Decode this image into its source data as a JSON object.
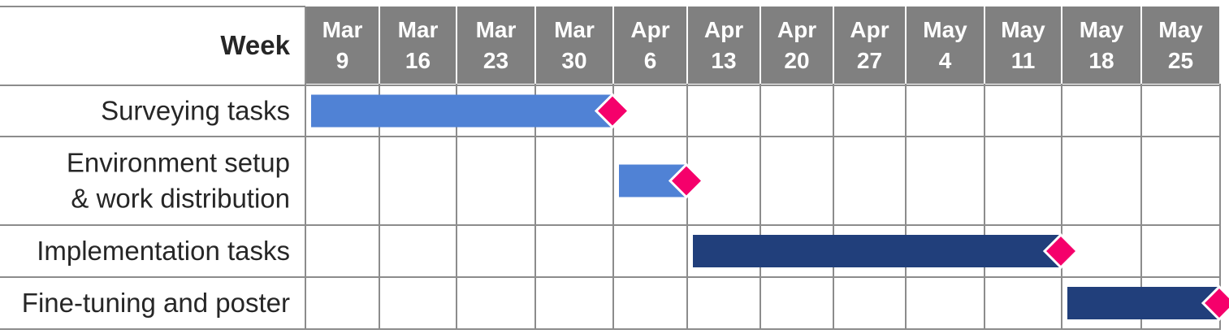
{
  "chart_data": {
    "type": "gantt",
    "header_label": "Week",
    "weeks": [
      {
        "month": "Mar",
        "day": "9"
      },
      {
        "month": "Mar",
        "day": "16"
      },
      {
        "month": "Mar",
        "day": "23"
      },
      {
        "month": "Mar",
        "day": "30"
      },
      {
        "month": "Apr",
        "day": "6"
      },
      {
        "month": "Apr",
        "day": "13"
      },
      {
        "month": "Apr",
        "day": "20"
      },
      {
        "month": "Apr",
        "day": "27"
      },
      {
        "month": "May",
        "day": "4"
      },
      {
        "month": "May",
        "day": "11"
      },
      {
        "month": "May",
        "day": "18"
      },
      {
        "month": "May",
        "day": "25"
      }
    ],
    "tasks": [
      {
        "label_lines": [
          "Surveying tasks"
        ],
        "start": "Mar 9",
        "end": "Apr 6",
        "color": "#5082d5"
      },
      {
        "label_lines": [
          "Environment setup",
          "& work distribution"
        ],
        "start": "Apr 6",
        "end": "Apr 13",
        "color": "#5082d5"
      },
      {
        "label_lines": [
          "Implementation tasks"
        ],
        "start": "Apr 13",
        "end": "May 18",
        "color": "#213f7b"
      },
      {
        "label_lines": [
          "Fine-tuning and poster"
        ],
        "start": "May 18",
        "end": "Jun 1",
        "color": "#213f7b"
      }
    ],
    "milestone_color": "#f5006b",
    "header_color": "#808080",
    "grid_color": "#8c8c8c"
  }
}
